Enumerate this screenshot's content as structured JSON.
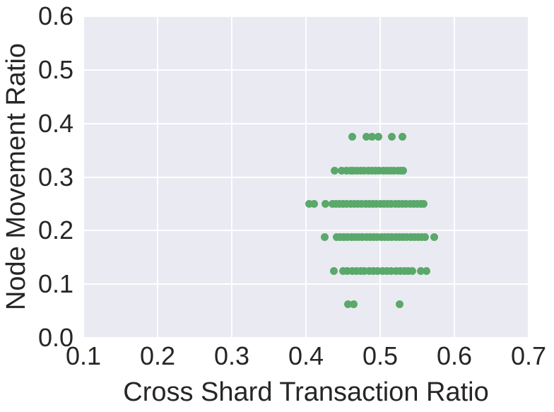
{
  "chart_data": {
    "type": "scatter",
    "title": "",
    "xlabel": "Cross Shard Transaction Ratio",
    "ylabel": "Node Movement Ratio",
    "xlim": [
      0.1,
      0.7
    ],
    "ylim": [
      0.0,
      0.6
    ],
    "xticks": [
      0.1,
      0.2,
      0.3,
      0.4,
      0.5,
      0.6,
      0.7
    ],
    "xtick_labels": [
      "0.1",
      "0.2",
      "0.3",
      "0.4",
      "0.5",
      "0.6",
      "0.7"
    ],
    "yticks": [
      0.0,
      0.1,
      0.2,
      0.3,
      0.4,
      0.5,
      0.6
    ],
    "ytick_labels": [
      "0.0",
      "0.1",
      "0.2",
      "0.3",
      "0.4",
      "0.5",
      "0.6"
    ],
    "grid": true,
    "legend": "none",
    "style": {
      "plot_bg": "#eaeaf2",
      "grid_color": "#ffffff",
      "marker_color": "#5aa86a",
      "text_color": "#262626",
      "marker_size_px": 11
    },
    "bands": [
      {
        "y": 0.375,
        "x": [
          0.462,
          0.481,
          0.489,
          0.498,
          0.516,
          0.53
        ]
      },
      {
        "y": 0.3125,
        "x": [
          0.439,
          0.448,
          0.455,
          0.46,
          0.464,
          0.469,
          0.474,
          0.479,
          0.484,
          0.489,
          0.494,
          0.499,
          0.504,
          0.509,
          0.514,
          0.519,
          0.524,
          0.528,
          0.531
        ]
      },
      {
        "y": 0.25,
        "x": [
          0.404,
          0.411,
          0.426,
          0.436,
          0.44,
          0.445,
          0.45,
          0.455,
          0.46,
          0.465,
          0.47,
          0.475,
          0.48,
          0.485,
          0.49,
          0.495,
          0.5,
          0.505,
          0.51,
          0.515,
          0.52,
          0.525,
          0.53,
          0.535,
          0.54,
          0.545,
          0.55,
          0.555,
          0.559
        ]
      },
      {
        "y": 0.1875,
        "x": [
          0.425,
          0.441,
          0.446,
          0.451,
          0.456,
          0.461,
          0.466,
          0.471,
          0.476,
          0.481,
          0.486,
          0.491,
          0.496,
          0.501,
          0.506,
          0.511,
          0.516,
          0.521,
          0.526,
          0.531,
          0.536,
          0.541,
          0.546,
          0.551,
          0.556,
          0.56,
          0.573
        ]
      },
      {
        "y": 0.125,
        "x": [
          0.438,
          0.45,
          0.456,
          0.462,
          0.468,
          0.474,
          0.479,
          0.485,
          0.491,
          0.497,
          0.503,
          0.509,
          0.515,
          0.521,
          0.527,
          0.533,
          0.538,
          0.543,
          0.555,
          0.562
        ]
      },
      {
        "y": 0.0625,
        "x": [
          0.457,
          0.464,
          0.526
        ]
      }
    ]
  }
}
